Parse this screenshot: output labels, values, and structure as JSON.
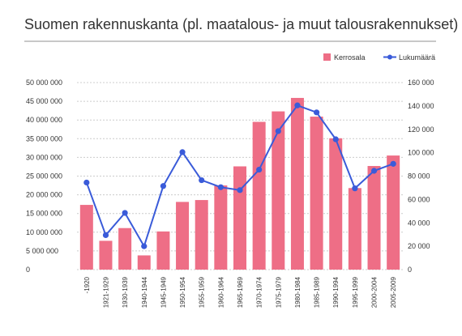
{
  "chart_data": {
    "type": "bar+line",
    "title": "Suomen rakennuskanta (pl. maatalous- ja muut talousrakennukset)",
    "categories": [
      "-1920",
      "1921-1929",
      "1930-1939",
      "1940-1944",
      "1945-1949",
      "1950-1954",
      "1955-1959",
      "1960-1964",
      "1965-1969",
      "1970-1974",
      "1975-1979",
      "1980-1984",
      "1985-1989",
      "1990-1994",
      "1995-1999",
      "2000-2004",
      "2005-2009"
    ],
    "series": [
      {
        "name": "Kerrosala",
        "type": "bar",
        "axis": "left",
        "color": "#ee6e86",
        "values": [
          17300000,
          7700000,
          11100000,
          3800000,
          10200000,
          18100000,
          18600000,
          22500000,
          27600000,
          39500000,
          42300000,
          45900000,
          40900000,
          35100000,
          21800000,
          27700000,
          30500000
        ]
      },
      {
        "name": "Lukumäärä",
        "type": "line",
        "axis": "right",
        "color": "#3a5bd9",
        "values": [
          74500,
          29500,
          48500,
          20000,
          71500,
          100500,
          76500,
          70500,
          68000,
          85500,
          118500,
          140500,
          134500,
          111500,
          69500,
          84500,
          90500
        ]
      }
    ],
    "y_left": {
      "min": 0,
      "max": 50000000,
      "ticks": [
        "0",
        "5 000 000",
        "10 000 000",
        "15 000 000",
        "20 000 000",
        "25 000 000",
        "30 000 000",
        "35 000 000",
        "40 000 000",
        "45 000 000",
        "50 000 000"
      ]
    },
    "y_right": {
      "min": 0,
      "max": 160000,
      "ticks": [
        "0",
        "20 000",
        "40 000",
        "60 000",
        "80 000",
        "100 000",
        "120 000",
        "140 000",
        "160 000"
      ]
    },
    "grid": true,
    "legend_position": "top-right"
  }
}
